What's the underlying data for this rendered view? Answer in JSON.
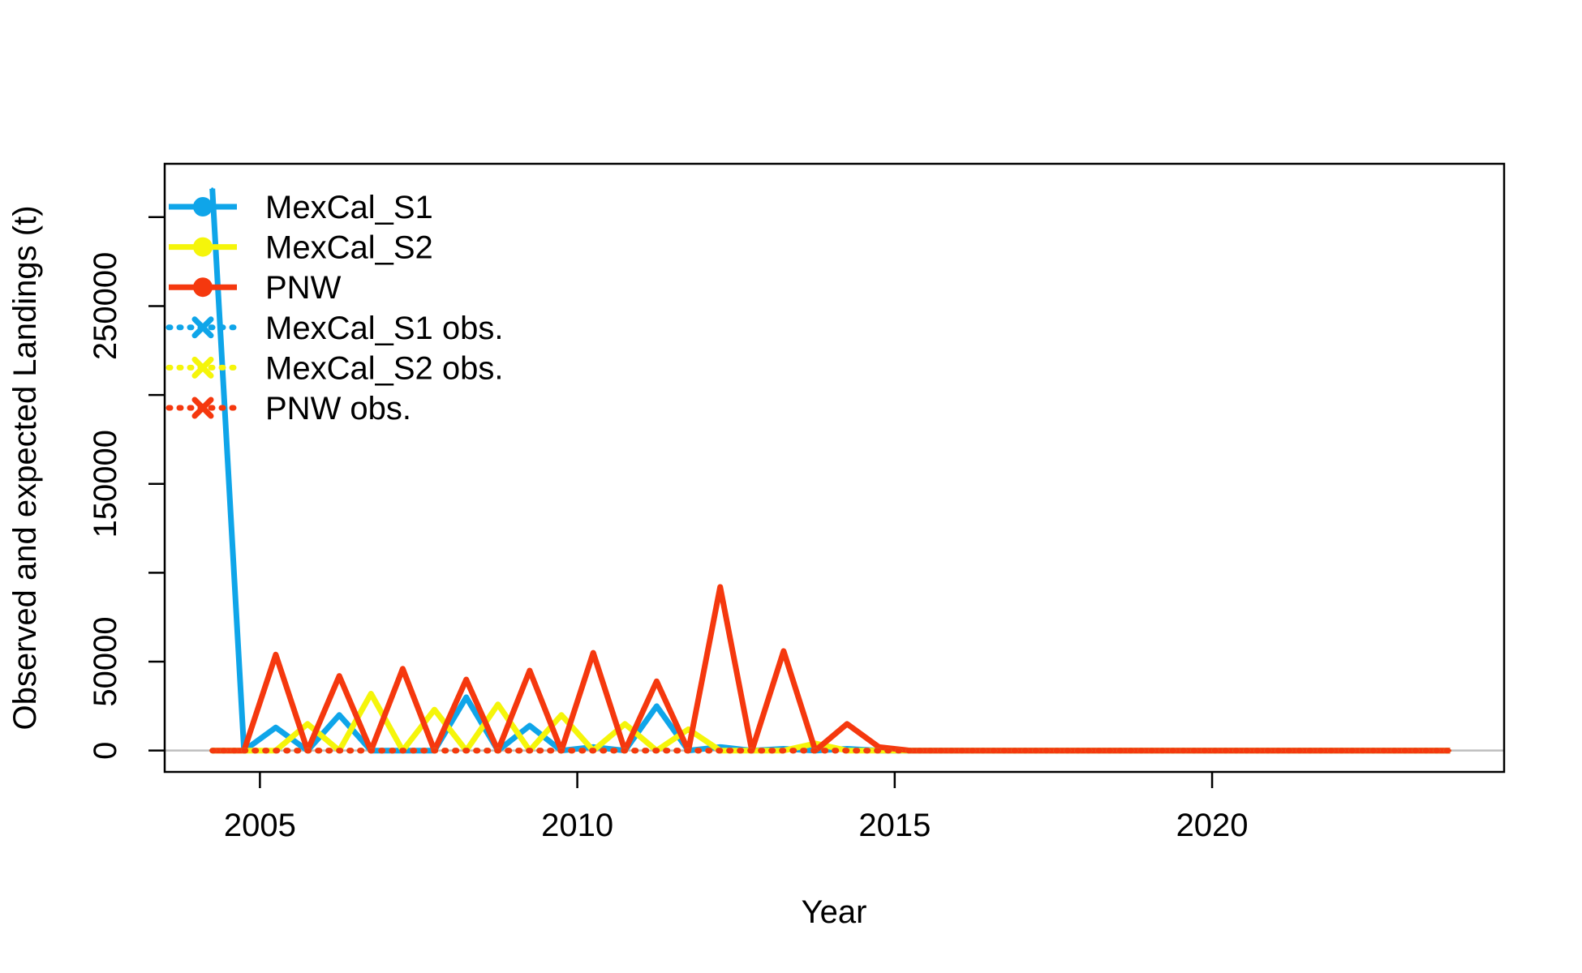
{
  "chart_data": {
    "type": "line",
    "title": "",
    "xlabel": "Year",
    "ylabel": "Observed and expected Landings (t)",
    "xlim": [
      2003.5,
      2024.6
    ],
    "ylim": [
      -12000,
      330000
    ],
    "xticks": [
      2005,
      2010,
      2015,
      2020
    ],
    "xtick_labels": [
      "2005",
      "2010",
      "2015",
      "2020"
    ],
    "yticks": [
      0,
      50000,
      100000,
      150000,
      200000,
      250000,
      300000
    ],
    "ytick_labels": [
      "0",
      "50000",
      "",
      "150000",
      "",
      "250000",
      ""
    ],
    "grid": false,
    "reference_line": 0,
    "legend_position": "top-left",
    "legend": [
      {
        "label": "MexCal_S1",
        "style": "solid",
        "marker": "dot",
        "color": "#0FA5E9"
      },
      {
        "label": "MexCal_S2",
        "style": "solid",
        "marker": "dot",
        "color": "#F5F50A"
      },
      {
        "label": "PNW",
        "style": "solid",
        "marker": "dot",
        "color": "#F5380E"
      },
      {
        "label": "MexCal_S1 obs.",
        "style": "dotted",
        "marker": "x",
        "color": "#0FA5E9"
      },
      {
        "label": "MexCal_S2 obs.",
        "style": "dotted",
        "marker": "x",
        "color": "#F5F50A"
      },
      {
        "label": "PNW obs.",
        "style": "dotted",
        "marker": "x",
        "color": "#F5380E"
      }
    ],
    "series": [
      {
        "name": "MexCal_S1",
        "color": "#0FA5E9",
        "style": "solid",
        "x": [
          2004.25,
          2004.75,
          2005.25,
          2005.75,
          2006.25,
          2006.75,
          2007.25,
          2007.75,
          2008.25,
          2008.75,
          2009.25,
          2009.75,
          2010.25,
          2010.75,
          2011.25,
          2011.75,
          2012.25,
          2012.75,
          2013.25,
          2013.75,
          2014.25,
          2014.75,
          2015.25,
          2015.75,
          2016.25,
          2016.75,
          2017.25,
          2017.75,
          2018.25,
          2018.75,
          2019.25,
          2019.75,
          2020.25,
          2020.75,
          2021.25,
          2021.75,
          2022.25,
          2022.75,
          2023.25,
          2023.75
        ],
        "y": [
          316000,
          0,
          13000,
          0,
          20000,
          0,
          0,
          0,
          30000,
          0,
          14000,
          0,
          2000,
          0,
          25000,
          0,
          2000,
          0,
          1000,
          0,
          1000,
          0,
          0,
          0,
          0,
          0,
          0,
          0,
          0,
          0,
          0,
          0,
          0,
          0,
          0,
          0,
          0,
          0,
          0,
          0
        ]
      },
      {
        "name": "MexCal_S2",
        "color": "#F5F50A",
        "style": "solid",
        "x": [
          2004.25,
          2004.75,
          2005.25,
          2005.75,
          2006.25,
          2006.75,
          2007.25,
          2007.75,
          2008.25,
          2008.75,
          2009.25,
          2009.75,
          2010.25,
          2010.75,
          2011.25,
          2011.75,
          2012.25,
          2012.75,
          2013.25,
          2013.75,
          2014.25,
          2014.75,
          2015.25,
          2015.75,
          2016.25,
          2016.75,
          2017.25,
          2017.75,
          2018.25,
          2018.75,
          2019.25,
          2019.75,
          2020.25,
          2020.75,
          2021.25,
          2021.75,
          2022.25,
          2022.75,
          2023.25,
          2023.75
        ],
        "y": [
          0,
          0,
          0,
          15000,
          0,
          32000,
          0,
          23000,
          0,
          26000,
          0,
          20000,
          0,
          15000,
          0,
          12000,
          0,
          0,
          0,
          4000,
          0,
          0,
          0,
          0,
          0,
          0,
          0,
          0,
          0,
          0,
          0,
          0,
          0,
          0,
          0,
          0,
          0,
          0,
          0,
          0
        ]
      },
      {
        "name": "PNW",
        "color": "#F5380E",
        "style": "solid",
        "x": [
          2004.25,
          2004.75,
          2005.25,
          2005.75,
          2006.25,
          2006.75,
          2007.25,
          2007.75,
          2008.25,
          2008.75,
          2009.25,
          2009.75,
          2010.25,
          2010.75,
          2011.25,
          2011.75,
          2012.25,
          2012.75,
          2013.25,
          2013.75,
          2014.25,
          2014.75,
          2015.25,
          2015.75,
          2016.25,
          2016.75,
          2017.25,
          2017.75,
          2018.25,
          2018.75,
          2019.25,
          2019.75,
          2020.25,
          2020.75,
          2021.25,
          2021.75,
          2022.25,
          2022.75,
          2023.25,
          2023.75
        ],
        "y": [
          0,
          0,
          54000,
          0,
          42000,
          0,
          46000,
          0,
          40000,
          0,
          45000,
          0,
          55000,
          0,
          39000,
          0,
          92000,
          0,
          56000,
          0,
          15000,
          2000,
          0,
          0,
          0,
          0,
          0,
          0,
          0,
          0,
          0,
          0,
          0,
          0,
          0,
          0,
          0,
          0,
          0,
          0
        ]
      },
      {
        "name": "MexCal_S1 obs.",
        "color": "#0FA5E9",
        "style": "dotted",
        "x": [
          2004.25,
          2004.75,
          2005.25,
          2005.75,
          2006.25,
          2006.75,
          2007.25,
          2007.75,
          2008.25,
          2008.75,
          2009.25,
          2009.75,
          2010.25,
          2010.75,
          2011.25,
          2011.75,
          2012.25,
          2012.75,
          2013.25,
          2013.75,
          2014.25,
          2014.75,
          2015.25,
          2015.75,
          2016.25,
          2016.75,
          2017.25,
          2017.75,
          2018.25,
          2018.75,
          2019.25,
          2019.75,
          2020.25,
          2020.75,
          2021.25,
          2021.75,
          2022.25,
          2022.75,
          2023.25,
          2023.75
        ],
        "y": [
          0,
          0,
          0,
          0,
          0,
          0,
          0,
          0,
          0,
          0,
          0,
          0,
          0,
          0,
          0,
          0,
          0,
          0,
          0,
          0,
          0,
          0,
          0,
          0,
          0,
          0,
          0,
          0,
          0,
          0,
          0,
          0,
          0,
          0,
          0,
          0,
          0,
          0,
          0,
          0
        ]
      },
      {
        "name": "MexCal_S2 obs.",
        "color": "#F5F50A",
        "style": "dotted",
        "x": [
          2004.25,
          2004.75,
          2005.25,
          2005.75,
          2006.25,
          2006.75,
          2007.25,
          2007.75,
          2008.25,
          2008.75,
          2009.25,
          2009.75,
          2010.25,
          2010.75,
          2011.25,
          2011.75,
          2012.25,
          2012.75,
          2013.25,
          2013.75,
          2014.25,
          2014.75,
          2015.25,
          2015.75,
          2016.25,
          2016.75,
          2017.25,
          2017.75,
          2018.25,
          2018.75,
          2019.25,
          2019.75,
          2020.25,
          2020.75,
          2021.25,
          2021.75,
          2022.25,
          2022.75,
          2023.25,
          2023.75
        ],
        "y": [
          0,
          0,
          0,
          0,
          0,
          0,
          0,
          0,
          0,
          0,
          0,
          0,
          0,
          0,
          0,
          0,
          0,
          0,
          0,
          0,
          0,
          0,
          0,
          0,
          0,
          0,
          0,
          0,
          0,
          0,
          0,
          0,
          0,
          0,
          0,
          0,
          0,
          0,
          0,
          0
        ]
      },
      {
        "name": "PNW obs.",
        "color": "#F5380E",
        "style": "dotted",
        "x": [
          2004.25,
          2004.75,
          2005.25,
          2005.75,
          2006.25,
          2006.75,
          2007.25,
          2007.75,
          2008.25,
          2008.75,
          2009.25,
          2009.75,
          2010.25,
          2010.75,
          2011.25,
          2011.75,
          2012.25,
          2012.75,
          2013.25,
          2013.75,
          2014.25,
          2014.75,
          2015.25,
          2015.75,
          2016.25,
          2016.75,
          2017.25,
          2017.75,
          2018.25,
          2018.75,
          2019.25,
          2019.75,
          2020.25,
          2020.75,
          2021.25,
          2021.75,
          2022.25,
          2022.75,
          2023.25,
          2023.75
        ],
        "y": [
          0,
          0,
          0,
          0,
          0,
          0,
          0,
          0,
          0,
          0,
          0,
          0,
          0,
          0,
          0,
          0,
          0,
          0,
          0,
          0,
          0,
          0,
          0,
          0,
          0,
          0,
          0,
          0,
          0,
          0,
          0,
          0,
          0,
          0,
          0,
          0,
          0,
          0,
          0,
          0
        ]
      }
    ]
  }
}
